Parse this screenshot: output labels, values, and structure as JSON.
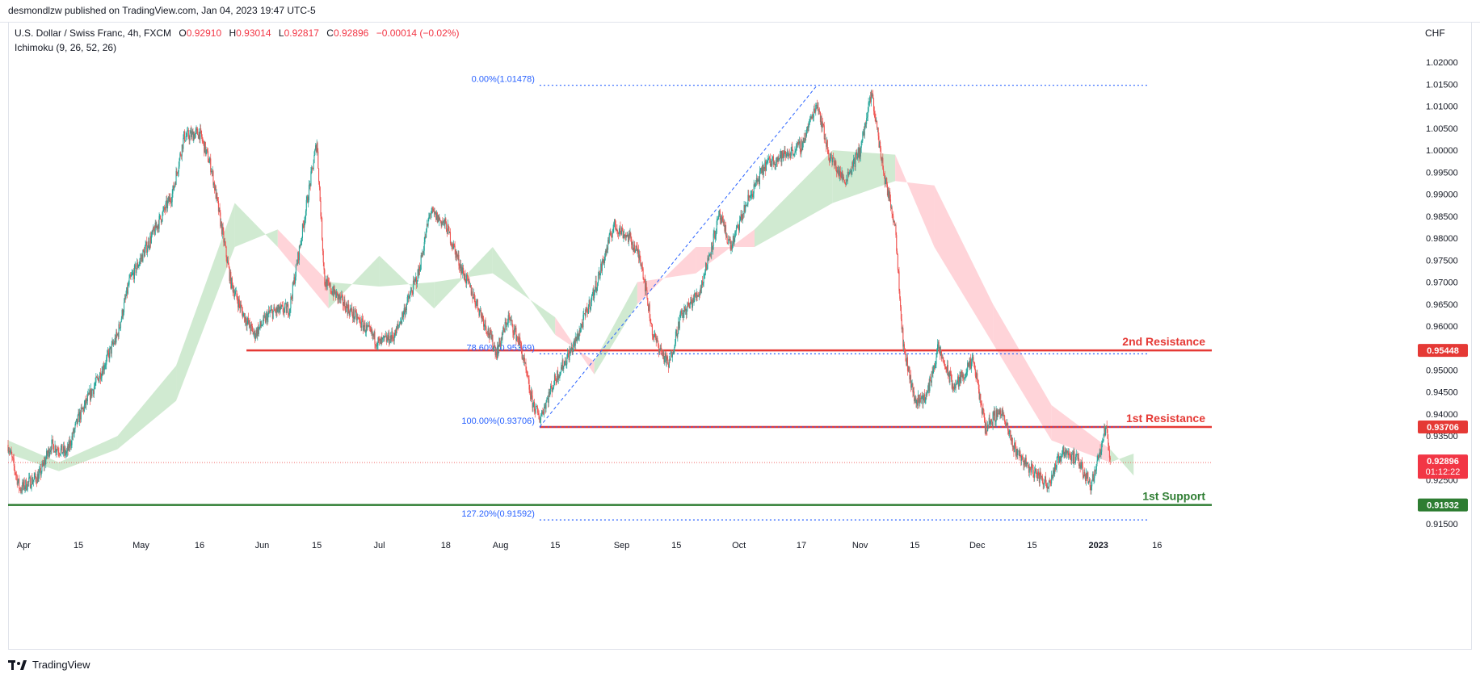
{
  "header": {
    "published": "desmondlzw published on TradingView.com, Jan 04, 2023 19:47 UTC-5"
  },
  "legend": {
    "symbol": "U.S. Dollar / Swiss Franc, 4h, FXCM",
    "open_label": "O",
    "open": "0.92910",
    "high_label": "H",
    "high": "0.93014",
    "low_label": "L",
    "low": "0.92817",
    "close_label": "C",
    "close": "0.92896",
    "change": "−0.00014 (−0.02%)",
    "indicator": "Ichimoku (9, 26, 52, 26)"
  },
  "currency": "CHF",
  "footer": {
    "brand": "TradingView"
  },
  "colors": {
    "up": "#26a69a",
    "down": "#ef5350",
    "cloud_bull": "#c8e6c9",
    "cloud_bear": "#ffcdd2",
    "resistance": "#e53935",
    "support": "#2e7d32",
    "fib": "#2962ff"
  },
  "chart_data": {
    "type": "candlestick",
    "y_axis": {
      "ylim": [
        0.913,
        1.025
      ],
      "ticks": [
        "1.02000",
        "1.01500",
        "1.01000",
        "1.00500",
        "1.00000",
        "0.99500",
        "0.99000",
        "0.98500",
        "0.98000",
        "0.97500",
        "0.97000",
        "0.96500",
        "0.96000",
        "0.95500",
        "0.95000",
        "0.94500",
        "0.94000",
        "0.93500",
        "0.93000",
        "0.92500",
        "0.92000",
        "0.91500"
      ]
    },
    "x_axis": {
      "ticks": [
        {
          "label": "Apr",
          "date": "2022-04-01"
        },
        {
          "label": "15",
          "date": "2022-04-15"
        },
        {
          "label": "May",
          "date": "2022-05-01"
        },
        {
          "label": "16",
          "date": "2022-05-16"
        },
        {
          "label": "Jun",
          "date": "2022-06-01"
        },
        {
          "label": "15",
          "date": "2022-06-15"
        },
        {
          "label": "Jul",
          "date": "2022-07-01"
        },
        {
          "label": "18",
          "date": "2022-07-18"
        },
        {
          "label": "Aug",
          "date": "2022-08-01"
        },
        {
          "label": "15",
          "date": "2022-08-15"
        },
        {
          "label": "Sep",
          "date": "2022-09-01"
        },
        {
          "label": "15",
          "date": "2022-09-15"
        },
        {
          "label": "Oct",
          "date": "2022-10-01"
        },
        {
          "label": "17",
          "date": "2022-10-17"
        },
        {
          "label": "Nov",
          "date": "2022-11-01"
        },
        {
          "label": "15",
          "date": "2022-11-15"
        },
        {
          "label": "Dec",
          "date": "2022-12-01"
        },
        {
          "label": "15",
          "date": "2022-12-15"
        },
        {
          "label": "2023",
          "date": "2023-01-01"
        },
        {
          "label": "16",
          "date": "2023-01-16"
        }
      ]
    },
    "price_path": [
      {
        "date": "2022-03-28",
        "price": 0.933
      },
      {
        "date": "2022-03-31",
        "price": 0.923
      },
      {
        "date": "2022-04-05",
        "price": 0.926
      },
      {
        "date": "2022-04-08",
        "price": 0.933
      },
      {
        "date": "2022-04-12",
        "price": 0.931
      },
      {
        "date": "2022-04-15",
        "price": 0.939
      },
      {
        "date": "2022-04-20",
        "price": 0.948
      },
      {
        "date": "2022-04-25",
        "price": 0.958
      },
      {
        "date": "2022-04-28",
        "price": 0.97
      },
      {
        "date": "2022-05-03",
        "price": 0.979
      },
      {
        "date": "2022-05-09",
        "price": 0.99
      },
      {
        "date": "2022-05-12",
        "price": 1.003
      },
      {
        "date": "2022-05-16",
        "price": 1.004
      },
      {
        "date": "2022-05-19",
        "price": 0.996
      },
      {
        "date": "2022-05-24",
        "price": 0.97
      },
      {
        "date": "2022-05-27",
        "price": 0.963
      },
      {
        "date": "2022-05-30",
        "price": 0.958
      },
      {
        "date": "2022-06-03",
        "price": 0.963
      },
      {
        "date": "2022-06-08",
        "price": 0.964
      },
      {
        "date": "2022-06-11",
        "price": 0.98
      },
      {
        "date": "2022-06-15",
        "price": 1.002
      },
      {
        "date": "2022-06-17",
        "price": 0.97
      },
      {
        "date": "2022-06-22",
        "price": 0.965
      },
      {
        "date": "2022-06-27",
        "price": 0.96
      },
      {
        "date": "2022-07-01",
        "price": 0.956
      },
      {
        "date": "2022-07-05",
        "price": 0.958
      },
      {
        "date": "2022-07-11",
        "price": 0.972
      },
      {
        "date": "2022-07-14",
        "price": 0.986
      },
      {
        "date": "2022-07-18",
        "price": 0.983
      },
      {
        "date": "2022-07-22",
        "price": 0.973
      },
      {
        "date": "2022-07-26",
        "price": 0.965
      },
      {
        "date": "2022-07-31",
        "price": 0.954
      },
      {
        "date": "2022-08-03",
        "price": 0.962
      },
      {
        "date": "2022-08-06",
        "price": 0.956
      },
      {
        "date": "2022-08-09",
        "price": 0.943
      },
      {
        "date": "2022-08-11",
        "price": 0.939
      },
      {
        "date": "2022-08-15",
        "price": 0.948
      },
      {
        "date": "2022-08-20",
        "price": 0.956
      },
      {
        "date": "2022-08-25",
        "price": 0.968
      },
      {
        "date": "2022-08-30",
        "price": 0.983
      },
      {
        "date": "2022-09-03",
        "price": 0.98
      },
      {
        "date": "2022-09-06",
        "price": 0.975
      },
      {
        "date": "2022-09-09",
        "price": 0.958
      },
      {
        "date": "2022-09-13",
        "price": 0.951
      },
      {
        "date": "2022-09-16",
        "price": 0.962
      },
      {
        "date": "2022-09-21",
        "price": 0.968
      },
      {
        "date": "2022-09-26",
        "price": 0.985
      },
      {
        "date": "2022-09-29",
        "price": 0.978
      },
      {
        "date": "2022-10-03",
        "price": 0.988
      },
      {
        "date": "2022-10-08",
        "price": 0.997
      },
      {
        "date": "2022-10-13",
        "price": 0.999
      },
      {
        "date": "2022-10-17",
        "price": 1.001
      },
      {
        "date": "2022-10-21",
        "price": 1.011
      },
      {
        "date": "2022-10-24",
        "price": 0.999
      },
      {
        "date": "2022-10-28",
        "price": 0.993
      },
      {
        "date": "2022-11-01",
        "price": 1.0
      },
      {
        "date": "2022-11-04",
        "price": 1.013
      },
      {
        "date": "2022-11-07",
        "price": 0.995
      },
      {
        "date": "2022-11-10",
        "price": 0.983
      },
      {
        "date": "2022-11-12",
        "price": 0.956
      },
      {
        "date": "2022-11-15",
        "price": 0.943
      },
      {
        "date": "2022-11-18",
        "price": 0.944
      },
      {
        "date": "2022-11-21",
        "price": 0.955
      },
      {
        "date": "2022-11-25",
        "price": 0.946
      },
      {
        "date": "2022-11-30",
        "price": 0.952
      },
      {
        "date": "2022-12-03",
        "price": 0.937
      },
      {
        "date": "2022-12-07",
        "price": 0.941
      },
      {
        "date": "2022-12-10",
        "price": 0.933
      },
      {
        "date": "2022-12-14",
        "price": 0.928
      },
      {
        "date": "2022-12-19",
        "price": 0.924
      },
      {
        "date": "2022-12-23",
        "price": 0.932
      },
      {
        "date": "2022-12-27",
        "price": 0.929
      },
      {
        "date": "2022-12-30",
        "price": 0.924
      },
      {
        "date": "2023-01-02",
        "price": 0.933
      },
      {
        "date": "2023-01-03",
        "price": 0.938
      },
      {
        "date": "2023-01-04",
        "price": 0.929
      }
    ],
    "cloud": [
      {
        "date": "2022-03-28",
        "a": 0.934,
        "b": 0.931
      },
      {
        "date": "2022-04-10",
        "a": 0.929,
        "b": 0.927
      },
      {
        "date": "2022-04-25",
        "a": 0.935,
        "b": 0.932
      },
      {
        "date": "2022-05-10",
        "a": 0.951,
        "b": 0.943
      },
      {
        "date": "2022-05-25",
        "a": 0.988,
        "b": 0.978
      },
      {
        "date": "2022-06-05",
        "a": 0.978,
        "b": 0.982
      },
      {
        "date": "2022-06-18",
        "a": 0.964,
        "b": 0.97
      },
      {
        "date": "2022-07-01",
        "a": 0.976,
        "b": 0.969
      },
      {
        "date": "2022-07-15",
        "a": 0.964,
        "b": 0.97
      },
      {
        "date": "2022-07-30",
        "a": 0.978,
        "b": 0.972
      },
      {
        "date": "2022-08-15",
        "a": 0.958,
        "b": 0.962
      },
      {
        "date": "2022-08-25",
        "a": 0.952,
        "b": 0.949
      },
      {
        "date": "2022-09-05",
        "a": 0.97,
        "b": 0.965
      },
      {
        "date": "2022-09-20",
        "a": 0.972,
        "b": 0.978
      },
      {
        "date": "2022-10-05",
        "a": 0.982,
        "b": 0.978
      },
      {
        "date": "2022-10-25",
        "a": 1.0,
        "b": 0.988
      },
      {
        "date": "2022-11-10",
        "a": 0.999,
        "b": 0.993
      },
      {
        "date": "2022-11-20",
        "a": 0.978,
        "b": 0.992
      },
      {
        "date": "2022-12-05",
        "a": 0.956,
        "b": 0.965
      },
      {
        "date": "2022-12-20",
        "a": 0.934,
        "b": 0.942
      },
      {
        "date": "2023-01-04",
        "a": 0.929,
        "b": 0.932
      },
      {
        "date": "2023-01-10",
        "a": 0.931,
        "b": 0.926
      }
    ],
    "levels": [
      {
        "name": "2nd Resistance",
        "value": 0.95448,
        "label": "0.95448",
        "color": "#e53935",
        "from": "2022-05-28"
      },
      {
        "name": "1st Resistance",
        "value": 0.93706,
        "label": "0.93706",
        "color": "#e53935",
        "from": "2022-08-11"
      },
      {
        "name": "1st Support",
        "value": 0.91932,
        "label": "0.91932",
        "color": "#2e7d32",
        "from": "2022-03-28"
      }
    ],
    "fibonacci": [
      {
        "label": "0.00%(1.01478)",
        "value": 1.01478
      },
      {
        "label": "78.60%(0.95369)",
        "value": 0.95369
      },
      {
        "label": "100.00%(0.93706)",
        "value": 0.93706
      },
      {
        "label": "127.20%(0.91592)",
        "value": 0.91592
      }
    ],
    "fib_anchor": {
      "start_date": "2022-08-11",
      "start_price": 0.93706,
      "end_date": "2022-10-21",
      "end_price": 1.01478,
      "extends_to": "2023-01-14"
    },
    "current_price": {
      "value": 0.92896,
      "label": "0.92896",
      "countdown": "01:12:22"
    }
  }
}
